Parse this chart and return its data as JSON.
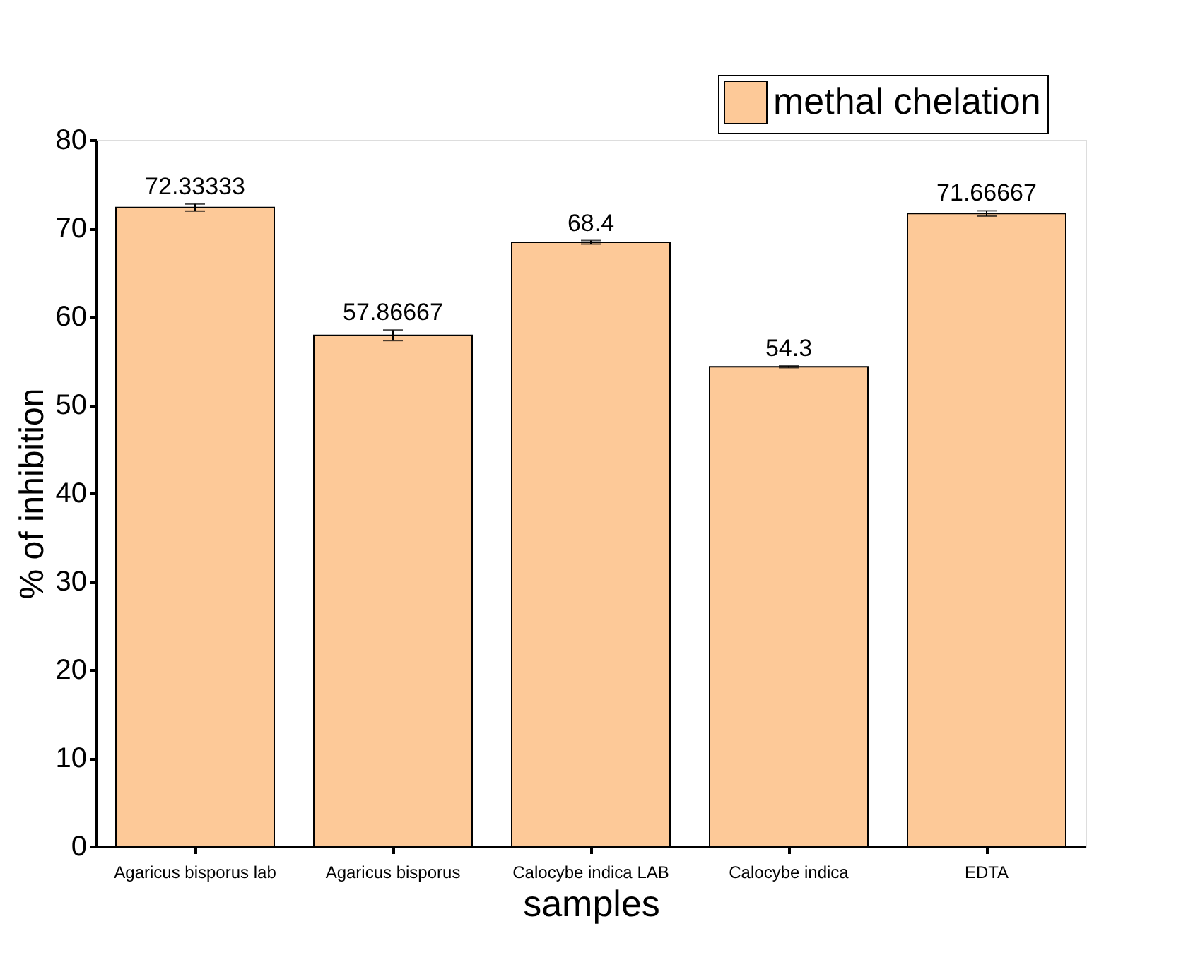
{
  "chart_data": {
    "type": "bar",
    "xlabel": "samples",
    "ylabel": "% of inhibition",
    "categories": [
      "Agaricus bisporus lab",
      "Agaricus bisporus",
      "Calocybe indica LAB",
      "Calocybe indica",
      "EDTA"
    ],
    "series": [
      {
        "name": "methal chelation",
        "color": "#fdc998",
        "values": [
          72.33333,
          57.86667,
          68.4,
          54.3,
          71.66667
        ],
        "errors": [
          0.4,
          0.6,
          0.2,
          0.1,
          0.3
        ]
      }
    ],
    "ylim": [
      0,
      80
    ],
    "yticks": [
      0,
      10,
      20,
      30,
      40,
      50,
      60,
      70,
      80
    ],
    "data_labels": true,
    "legend": "top right",
    "grid": false
  }
}
